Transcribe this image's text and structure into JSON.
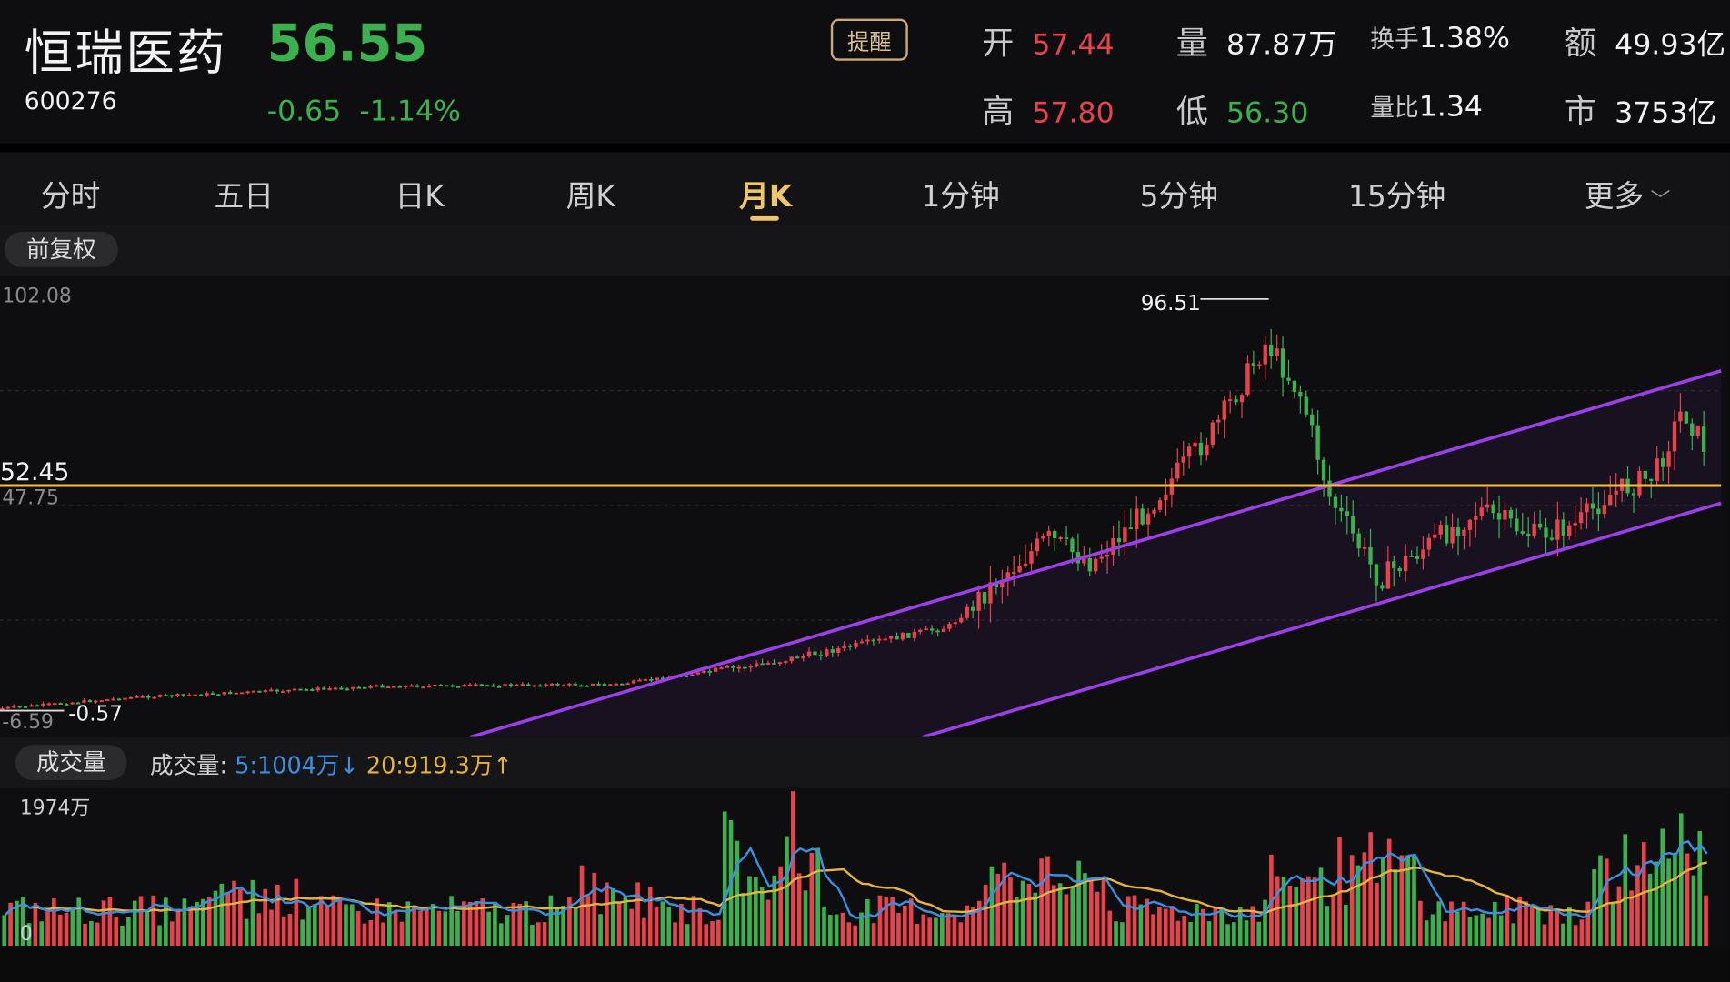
{
  "stock": {
    "name": "恒瑞医药",
    "code": "600276",
    "price": "56.55",
    "change": "-0.65",
    "change_pct": "-1.14%",
    "alert_label": "提醒"
  },
  "quote": {
    "open_label": "开",
    "open": "57.44",
    "high_label": "高",
    "high": "57.80",
    "volume_label": "量",
    "volume": "87.87万",
    "low_label": "低",
    "low": "56.30",
    "turnover_label": "换手",
    "turnover": "1.38%",
    "vol_ratio_label": "量比",
    "vol_ratio": "1.34",
    "amount_label": "额",
    "amount": "49.93亿",
    "mktcap_label": "市",
    "mktcap": "3753亿"
  },
  "tabs": [
    {
      "label": "分时"
    },
    {
      "label": "五日"
    },
    {
      "label": "日K"
    },
    {
      "label": "周K"
    },
    {
      "label": "月K",
      "active": true
    },
    {
      "label": "1分钟"
    },
    {
      "label": "5分钟"
    },
    {
      "label": "15分钟"
    },
    {
      "label": "更多"
    }
  ],
  "adjust_label": "前复权",
  "chart": {
    "y_max_label": "102.08",
    "y_mid_label": "47.75",
    "y_min_label": "-6.59",
    "hline_label": "52.45",
    "high_marker": "96.51",
    "low_marker": "-0.57",
    "up_color": "#e8424b",
    "down_color": "#3cb04e",
    "channel_color": "#9b3fe6",
    "hline_color": "#f5c04a"
  },
  "volume": {
    "pill_label": "成交量",
    "legend_label": "成交量:",
    "ma5_label": "5:1004万",
    "ma20_label": "20:919.3万",
    "max_label": "1974万",
    "zero_label": "0",
    "ma5_color": "#3b8fe0",
    "ma20_color": "#e6b33d"
  }
}
